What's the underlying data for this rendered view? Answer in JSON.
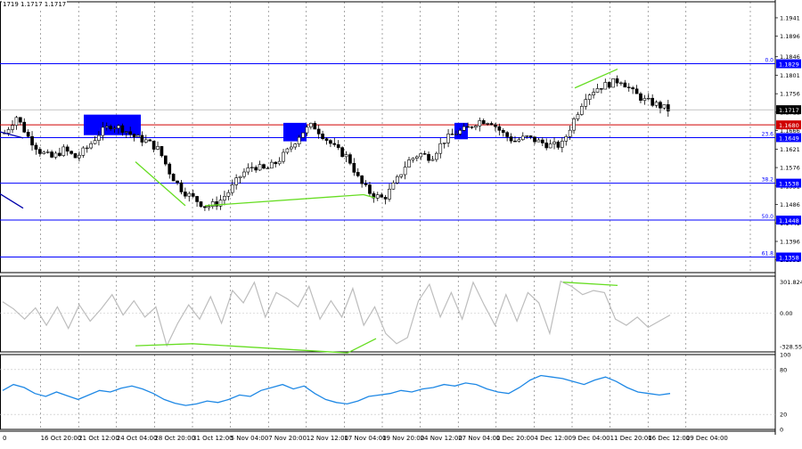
{
  "header": {
    "ohlc_text": "1719 1.1717 1.1717"
  },
  "colors": {
    "bull": "#000000",
    "bear": "#000000",
    "level_line": "#0000ff",
    "resistance_line": "#d00000",
    "current_price_bg": "#000000",
    "label_bg": "#0000ff",
    "trendline": "#66dd22",
    "zone": "#0000ff",
    "cci": "#bdbdbd",
    "rsi": "#1e88e5",
    "grid": "#000000"
  },
  "chart_data": [
    {
      "type": "candlestick",
      "title": "",
      "ylim": [
        1.132,
        1.198
      ],
      "price_axis_ticks": [
        "1.1941",
        "1.1896",
        "1.1846",
        "1.1801",
        "1.1756",
        "1.1711",
        "1.1666",
        "1.1621",
        "1.1576",
        "1.1531",
        "1.1486",
        "1.1441",
        "1.1396",
        "1.1351"
      ],
      "current_price": "1.1717",
      "levels": [
        {
          "value": 1.1829,
          "label": "1.1829",
          "fib": "0.0",
          "color": "#0000ff"
        },
        {
          "value": 1.168,
          "label": "1.1680",
          "fib": "",
          "color": "#d00000"
        },
        {
          "value": 1.1649,
          "label": "1.1649",
          "fib": "23.6",
          "color": "#0000ff"
        },
        {
          "value": 1.1538,
          "label": "1.1538",
          "fib": "38.2",
          "color": "#0000ff"
        },
        {
          "value": 1.1448,
          "label": "1.1448",
          "fib": "50.0",
          "color": "#0000ff"
        },
        {
          "value": 1.1358,
          "label": "1.1358",
          "fib": "61.8",
          "color": "#0000ff"
        }
      ],
      "close_path": [
        1.166,
        1.17,
        1.165,
        1.1615,
        1.16,
        1.162,
        1.16,
        1.1625,
        1.166,
        1.168,
        1.167,
        1.165,
        1.164,
        1.162,
        1.156,
        1.152,
        1.15,
        1.148,
        1.149,
        1.152,
        1.156,
        1.158,
        1.157,
        1.159,
        1.162,
        1.166,
        1.168,
        1.165,
        1.162,
        1.16,
        1.154,
        1.151,
        1.15,
        1.154,
        1.159,
        1.161,
        1.16,
        1.164,
        1.166,
        1.167,
        1.169,
        1.169,
        1.166,
        1.164,
        1.165,
        1.164,
        1.163,
        1.163,
        1.169,
        1.175,
        1.177,
        1.178,
        1.179,
        1.176,
        1.174,
        1.173,
        1.1717
      ],
      "zones": [
        {
          "x_from": 94,
          "x_to": 158,
          "y_top": 1.1705,
          "y_bottom": 1.1655
        },
        {
          "x_from": 318,
          "x_to": 344,
          "y_top": 1.1685,
          "y_bottom": 1.164
        },
        {
          "x_from": 510,
          "x_to": 525,
          "y_top": 1.1685,
          "y_bottom": 1.1645
        }
      ],
      "trendlines": [
        {
          "from": [
            152,
            1.159
          ],
          "to": [
            208,
            1.1483
          ]
        },
        {
          "from": [
            230,
            1.1483
          ],
          "to": [
            408,
            1.151
          ]
        },
        {
          "from": [
            408,
            1.151
          ],
          "to": [
            421,
            1.1502
          ]
        },
        {
          "from": [
            645,
            1.177
          ],
          "to": [
            693,
            1.1816
          ]
        }
      ],
      "blue_segments": [
        {
          "from": [
            0,
            1.1663
          ],
          "to": [
            26,
            1.1648
          ]
        },
        {
          "from": [
            0,
            1.1512
          ],
          "to": [
            26,
            1.1477
          ]
        }
      ]
    },
    {
      "type": "line",
      "title": "",
      "ylim": [
        -380,
        360
      ],
      "axis_labels": [
        "301.8242",
        "0.00",
        "-328.551"
      ],
      "series": [
        {
          "values": [
            110,
            40,
            -60,
            50,
            -120,
            60,
            -150,
            80,
            -80,
            40,
            180,
            -20,
            120,
            -40,
            60,
            -320,
            -100,
            80,
            -60,
            160,
            -100,
            220,
            100,
            300,
            -40,
            200,
            140,
            60,
            260,
            -60,
            120,
            -40,
            240,
            -120,
            60,
            -200,
            -300,
            -240,
            120,
            280,
            -40,
            200,
            -60,
            300,
            80,
            -120,
            180,
            -80,
            200,
            100,
            -200,
            310,
            260,
            180,
            220,
            200,
            -60,
            -120,
            -40,
            -140,
            -80,
            -20
          ]
        }
      ],
      "trendlines": [
        {
          "from": [
            152,
            -320
          ],
          "to": [
            216,
            -300
          ]
        },
        {
          "from": [
            216,
            -300
          ],
          "to": [
            390,
            -390
          ]
        },
        {
          "from": [
            390,
            -390
          ],
          "to": [
            422,
            -250
          ]
        },
        {
          "from": [
            632,
            301
          ],
          "to": [
            693,
            270
          ]
        }
      ]
    },
    {
      "type": "line",
      "title": "",
      "ylim": [
        0,
        100
      ],
      "axis_labels": [
        "100",
        "80",
        "20",
        "0"
      ],
      "series": [
        {
          "values": [
            52,
            60,
            56,
            48,
            44,
            50,
            45,
            40,
            46,
            52,
            50,
            55,
            58,
            54,
            48,
            40,
            35,
            32,
            34,
            38,
            36,
            40,
            46,
            44,
            52,
            56,
            60,
            54,
            58,
            48,
            40,
            36,
            34,
            38,
            44,
            46,
            48,
            52,
            50,
            54,
            56,
            60,
            58,
            62,
            60,
            54,
            50,
            48,
            56,
            66,
            72,
            70,
            68,
            64,
            60,
            66,
            70,
            64,
            56,
            50,
            48,
            46,
            48
          ]
        }
      ]
    }
  ],
  "x_axis": {
    "labels": [
      "0",
      "16 Oct 20:00",
      "21 Oct 12:00",
      "24 Oct 04:00",
      "28 Oct 20:00",
      "31 Oct 12:00",
      "5 Nov 04:00",
      "7 Nov 20:00",
      "12 Nov 12:00",
      "17 Nov 04:00",
      "19 Nov 20:00",
      "24 Nov 12:00",
      "27 Nov 04:00",
      "1 Dec 20:00",
      "4 Dec 12:00",
      "9 Dec 04:00",
      "11 Dec 20:00",
      "16 Dec 12:00",
      "19 Dec 04:00"
    ]
  }
}
